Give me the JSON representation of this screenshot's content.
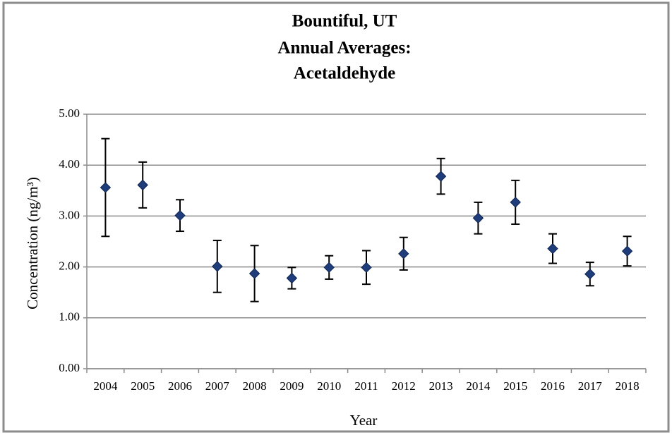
{
  "chart_data": {
    "type": "errorbar",
    "title": [
      "Bountiful, UT",
      "Annual Averages:",
      "Acetaldehyde"
    ],
    "x_label": "Year",
    "y_label": "Concentration (ng/m³)",
    "categories": [
      "2004",
      "2005",
      "2006",
      "2007",
      "2008",
      "2009",
      "2010",
      "2011",
      "2012",
      "2013",
      "2014",
      "2015",
      "2016",
      "2017",
      "2018"
    ],
    "values": [
      3.56,
      3.61,
      3.01,
      2.01,
      1.87,
      1.78,
      1.99,
      1.99,
      2.26,
      3.78,
      2.96,
      3.27,
      2.36,
      1.86,
      2.31
    ],
    "errors": [
      0.96,
      0.45,
      0.31,
      0.51,
      0.55,
      0.21,
      0.23,
      0.33,
      0.32,
      0.35,
      0.31,
      0.43,
      0.29,
      0.23,
      0.29
    ],
    "color": "#1f3d7a",
    "ylim": [
      0,
      5
    ],
    "yticks": [
      {
        "value": 0,
        "label": "0.00"
      },
      {
        "value": 1,
        "label": "1.00"
      },
      {
        "value": 2,
        "label": "2.00"
      },
      {
        "value": 3,
        "label": "3.00"
      },
      {
        "value": 4,
        "label": "4.00"
      },
      {
        "value": 5,
        "label": "5.00"
      }
    ],
    "grid": true
  }
}
